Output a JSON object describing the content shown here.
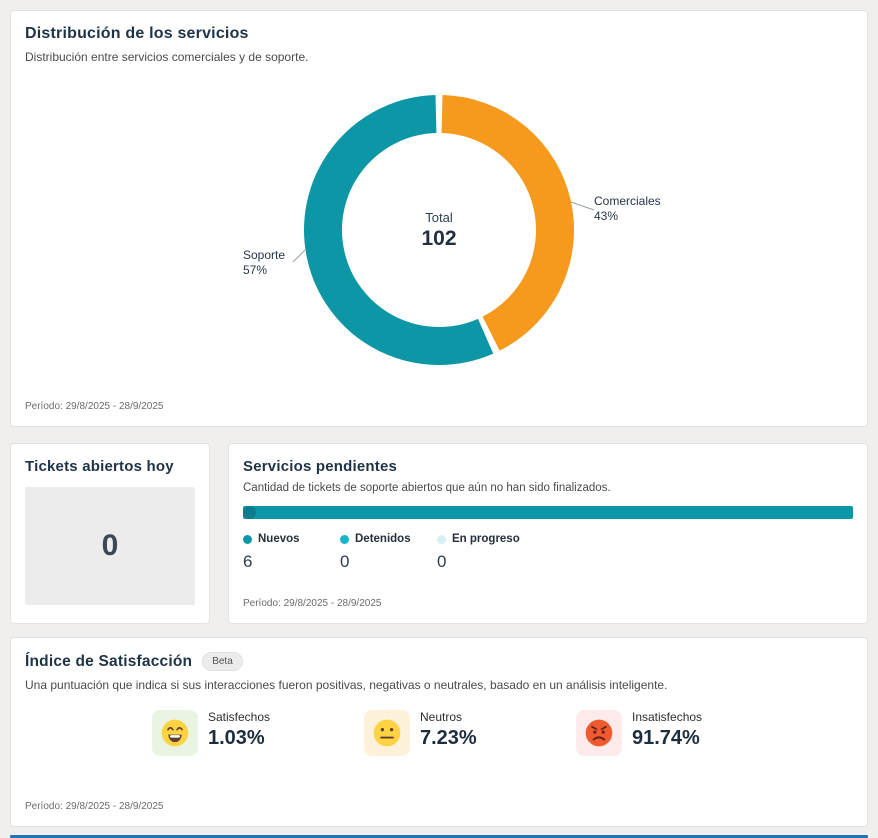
{
  "distribution_card": {
    "title": "Distribución de los servicios",
    "subtitle": "Distribución entre servicios comerciales y de soporte.",
    "center_label": "Total",
    "center_value": "102",
    "period": "Período: 29/8/2025 - 28/9/2025"
  },
  "chart_data": [
    {
      "type": "pie",
      "donut": true,
      "title": "Distribución de los servicios",
      "labels": [
        "Comerciales",
        "Soporte"
      ],
      "values": [
        43,
        57
      ],
      "percent_labels": [
        "43%",
        "57%"
      ],
      "colors": [
        "#f6991d",
        "#0d96a5"
      ],
      "center_label": "Total",
      "center_value": 102,
      "legend_position": "outside-callouts"
    },
    {
      "type": "bar",
      "orientation": "horizontal-stacked",
      "title": "Servicios pendientes",
      "categories": [
        "Nuevos",
        "Detenidos",
        "En progreso"
      ],
      "values": [
        6,
        0,
        0
      ],
      "colors": [
        "#0d96a5",
        "#17b5c9",
        "#d6f0f4"
      ],
      "legend_position": "bottom"
    }
  ],
  "tickets_card": {
    "title": "Tickets abiertos hoy",
    "value": "0"
  },
  "pending_card": {
    "title": "Servicios pendientes",
    "subtitle": "Cantidad de tickets de soporte abiertos que aún no han sido finalizados.",
    "legend": [
      {
        "label": "Nuevos",
        "value": "6",
        "color": "#0d96a5"
      },
      {
        "label": "Detenidos",
        "value": "0",
        "color": "#17b5c9"
      },
      {
        "label": "En progreso",
        "value": "0",
        "color": "#d6f0f4"
      }
    ],
    "period": "Período: 29/8/2025 - 28/9/2025"
  },
  "satisfaction_card": {
    "title": "Índice de Satisfacción",
    "badge": "Beta",
    "subtitle": "Una puntuación que indica si sus interacciones fueron positivas, negativas o neutrales, basado en un análisis inteligente.",
    "stats": [
      {
        "icon": "grinning-face",
        "label": "Satisfechos",
        "value": "1.03%",
        "bg": "#e9f4e3"
      },
      {
        "icon": "neutral-face",
        "label": "Neutros",
        "value": "7.23%",
        "bg": "#fdf1da"
      },
      {
        "icon": "angry-face",
        "label": "Insatisfechos",
        "value": "91.74%",
        "bg": "#fdeaea"
      }
    ],
    "period": "Período: 29/8/2025 - 28/9/2025"
  },
  "footer": {
    "bar_color": "#2273b8"
  }
}
